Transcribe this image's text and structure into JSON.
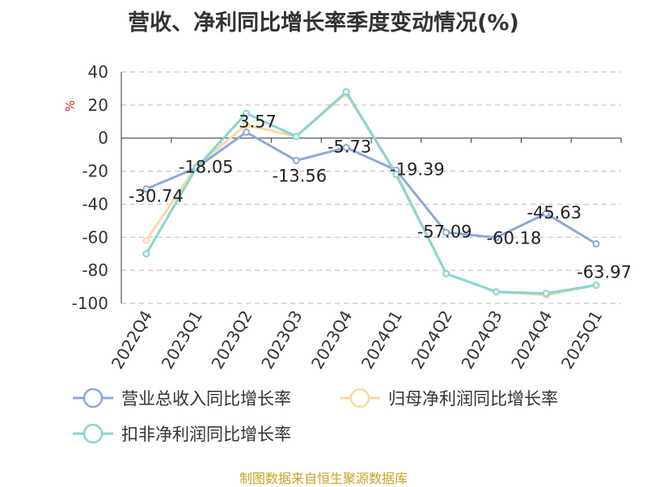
{
  "chart_data": {
    "type": "line",
    "title": "营收、净利同比增长率季度变动情况(%)",
    "ylabel": "%",
    "ylim": [
      -100,
      40
    ],
    "yticks": [
      40,
      20,
      0,
      -20,
      -40,
      -60,
      -80,
      -100
    ],
    "grid": true,
    "legend_position": "bottom",
    "categories": [
      "2022Q4",
      "2023Q1",
      "2023Q2",
      "2023Q3",
      "2023Q4",
      "2024Q1",
      "2024Q2",
      "2024Q3",
      "2024Q4",
      "2025Q1"
    ],
    "series": [
      {
        "name": "营业总收入同比增长率",
        "color": "#8ea8d8",
        "values": [
          -30.74,
          -18.05,
          3.57,
          -13.56,
          -5.73,
          -19.39,
          -57.09,
          -60.18,
          -45.63,
          -63.97
        ],
        "labels": [
          "-30.74",
          "-18.05",
          "3.57",
          "-13.56",
          "-5.73",
          "-19.39",
          "-57.09",
          "-60.18",
          "-45.63",
          "-63.97"
        ]
      },
      {
        "name": "归母净利润同比增长率",
        "color": "#f8d9a0",
        "values": [
          -62,
          -17,
          8,
          1,
          27,
          -21,
          -82,
          -93,
          -95,
          -89
        ]
      },
      {
        "name": "扣非净利润同比增长率",
        "color": "#88d4d4",
        "values": [
          -70,
          -18,
          15,
          1,
          28,
          -22,
          -82,
          -93,
          -94,
          -89
        ]
      }
    ]
  },
  "source": "制图数据来自恒生聚源数据库"
}
